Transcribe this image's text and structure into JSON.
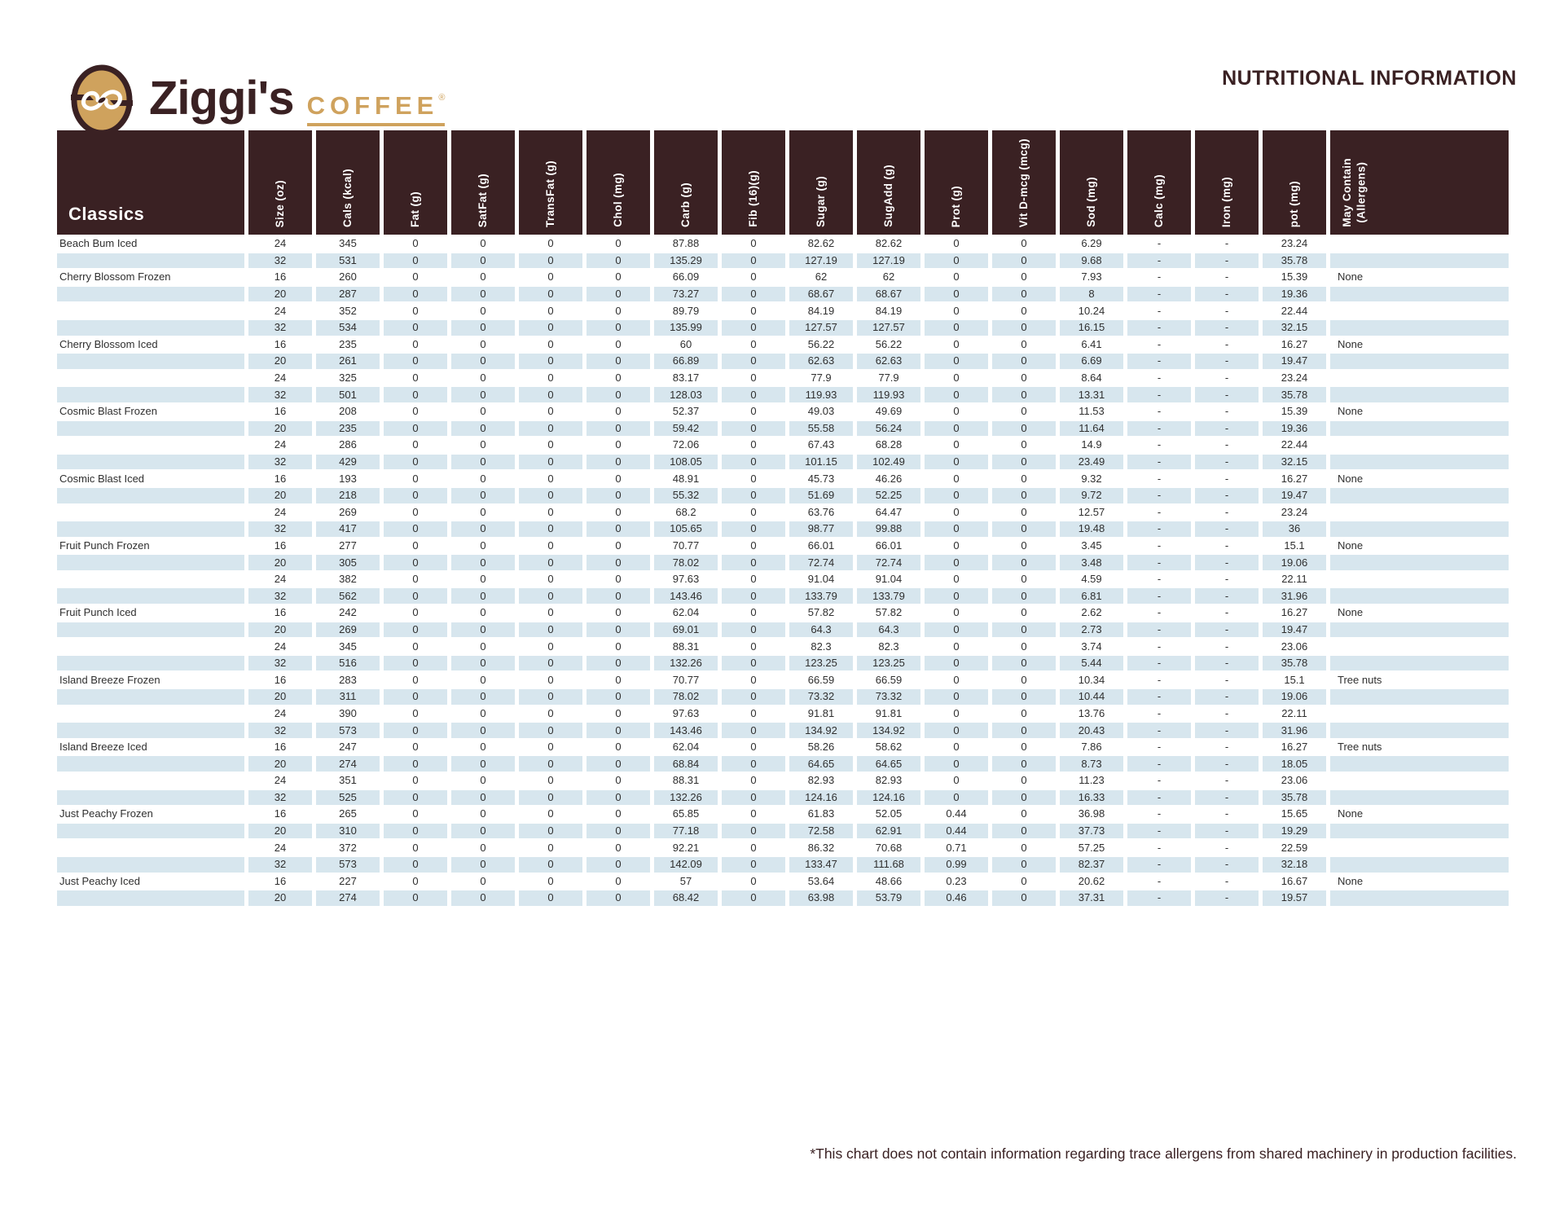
{
  "brand": {
    "name": "Ziggi's",
    "word2": "COFFEE",
    "registered": "®"
  },
  "page_title": "NUTRITIONAL INFORMATION",
  "footnote": "*This chart does not contain information regarding trace allergens from shared machinery in production facilities.",
  "colors": {
    "header_bg": "#3A2123",
    "stripe_blue": "#D7E6EE",
    "brand_tan": "#CFA25D",
    "text": "#2F2F2F"
  },
  "table": {
    "category_label": "Classics",
    "columns": [
      "Size (oz)",
      "Cals (kcal)",
      "Fat (g)",
      "SatFat (g)",
      "TransFat (g)",
      "Chol (mg)",
      "Carb (g)",
      "Fib (16)(g)",
      "Sugar (g)",
      "SugAdd (g)",
      "Prot (g)",
      "Vit D-mcg (mcg)",
      "Sod (mg)",
      "Calc (mg)",
      "Iron (mg)",
      "pot (mg)"
    ],
    "allergen_column": [
      "May Contain",
      "(Allergens)"
    ],
    "rows": [
      {
        "name": "Beach Bum Iced",
        "v": [
          "24",
          "345",
          "0",
          "0",
          "0",
          "0",
          "87.88",
          "0",
          "82.62",
          "82.62",
          "0",
          "0",
          "6.29",
          "-",
          "-",
          "23.24"
        ],
        "a": ""
      },
      {
        "name": "",
        "v": [
          "32",
          "531",
          "0",
          "0",
          "0",
          "0",
          "135.29",
          "0",
          "127.19",
          "127.19",
          "0",
          "0",
          "9.68",
          "-",
          "-",
          "35.78"
        ],
        "a": ""
      },
      {
        "name": "Cherry Blossom Frozen",
        "v": [
          "16",
          "260",
          "0",
          "0",
          "0",
          "0",
          "66.09",
          "0",
          "62",
          "62",
          "0",
          "0",
          "7.93",
          "-",
          "-",
          "15.39"
        ],
        "a": "None"
      },
      {
        "name": "",
        "v": [
          "20",
          "287",
          "0",
          "0",
          "0",
          "0",
          "73.27",
          "0",
          "68.67",
          "68.67",
          "0",
          "0",
          "8",
          "-",
          "-",
          "19.36"
        ],
        "a": ""
      },
      {
        "name": "",
        "v": [
          "24",
          "352",
          "0",
          "0",
          "0",
          "0",
          "89.79",
          "0",
          "84.19",
          "84.19",
          "0",
          "0",
          "10.24",
          "-",
          "-",
          "22.44"
        ],
        "a": ""
      },
      {
        "name": "",
        "v": [
          "32",
          "534",
          "0",
          "0",
          "0",
          "0",
          "135.99",
          "0",
          "127.57",
          "127.57",
          "0",
          "0",
          "16.15",
          "-",
          "-",
          "32.15"
        ],
        "a": ""
      },
      {
        "name": "Cherry Blossom Iced",
        "v": [
          "16",
          "235",
          "0",
          "0",
          "0",
          "0",
          "60",
          "0",
          "56.22",
          "56.22",
          "0",
          "0",
          "6.41",
          "-",
          "-",
          "16.27"
        ],
        "a": "None"
      },
      {
        "name": "",
        "v": [
          "20",
          "261",
          "0",
          "0",
          "0",
          "0",
          "66.89",
          "0",
          "62.63",
          "62.63",
          "0",
          "0",
          "6.69",
          "-",
          "-",
          "19.47"
        ],
        "a": ""
      },
      {
        "name": "",
        "v": [
          "24",
          "325",
          "0",
          "0",
          "0",
          "0",
          "83.17",
          "0",
          "77.9",
          "77.9",
          "0",
          "0",
          "8.64",
          "-",
          "-",
          "23.24"
        ],
        "a": ""
      },
      {
        "name": "",
        "v": [
          "32",
          "501",
          "0",
          "0",
          "0",
          "0",
          "128.03",
          "0",
          "119.93",
          "119.93",
          "0",
          "0",
          "13.31",
          "-",
          "-",
          "35.78"
        ],
        "a": ""
      },
      {
        "name": "Cosmic Blast Frozen",
        "v": [
          "16",
          "208",
          "0",
          "0",
          "0",
          "0",
          "52.37",
          "0",
          "49.03",
          "49.69",
          "0",
          "0",
          "11.53",
          "-",
          "-",
          "15.39"
        ],
        "a": "None"
      },
      {
        "name": "",
        "v": [
          "20",
          "235",
          "0",
          "0",
          "0",
          "0",
          "59.42",
          "0",
          "55.58",
          "56.24",
          "0",
          "0",
          "11.64",
          "-",
          "-",
          "19.36"
        ],
        "a": ""
      },
      {
        "name": "",
        "v": [
          "24",
          "286",
          "0",
          "0",
          "0",
          "0",
          "72.06",
          "0",
          "67.43",
          "68.28",
          "0",
          "0",
          "14.9",
          "-",
          "-",
          "22.44"
        ],
        "a": ""
      },
      {
        "name": "",
        "v": [
          "32",
          "429",
          "0",
          "0",
          "0",
          "0",
          "108.05",
          "0",
          "101.15",
          "102.49",
          "0",
          "0",
          "23.49",
          "-",
          "-",
          "32.15"
        ],
        "a": ""
      },
      {
        "name": "Cosmic Blast Iced",
        "v": [
          "16",
          "193",
          "0",
          "0",
          "0",
          "0",
          "48.91",
          "0",
          "45.73",
          "46.26",
          "0",
          "0",
          "9.32",
          "-",
          "-",
          "16.27"
        ],
        "a": "None"
      },
      {
        "name": "",
        "v": [
          "20",
          "218",
          "0",
          "0",
          "0",
          "0",
          "55.32",
          "0",
          "51.69",
          "52.25",
          "0",
          "0",
          "9.72",
          "-",
          "-",
          "19.47"
        ],
        "a": ""
      },
      {
        "name": "",
        "v": [
          "24",
          "269",
          "0",
          "0",
          "0",
          "0",
          "68.2",
          "0",
          "63.76",
          "64.47",
          "0",
          "0",
          "12.57",
          "-",
          "-",
          "23.24"
        ],
        "a": ""
      },
      {
        "name": "",
        "v": [
          "32",
          "417",
          "0",
          "0",
          "0",
          "0",
          "105.65",
          "0",
          "98.77",
          "99.88",
          "0",
          "0",
          "19.48",
          "-",
          "-",
          "36"
        ],
        "a": ""
      },
      {
        "name": "Fruit Punch Frozen",
        "v": [
          "16",
          "277",
          "0",
          "0",
          "0",
          "0",
          "70.77",
          "0",
          "66.01",
          "66.01",
          "0",
          "0",
          "3.45",
          "-",
          "-",
          "15.1"
        ],
        "a": "None"
      },
      {
        "name": "",
        "v": [
          "20",
          "305",
          "0",
          "0",
          "0",
          "0",
          "78.02",
          "0",
          "72.74",
          "72.74",
          "0",
          "0",
          "3.48",
          "-",
          "-",
          "19.06"
        ],
        "a": ""
      },
      {
        "name": "",
        "v": [
          "24",
          "382",
          "0",
          "0",
          "0",
          "0",
          "97.63",
          "0",
          "91.04",
          "91.04",
          "0",
          "0",
          "4.59",
          "-",
          "-",
          "22.11"
        ],
        "a": ""
      },
      {
        "name": "",
        "v": [
          "32",
          "562",
          "0",
          "0",
          "0",
          "0",
          "143.46",
          "0",
          "133.79",
          "133.79",
          "0",
          "0",
          "6.81",
          "-",
          "-",
          "31.96"
        ],
        "a": ""
      },
      {
        "name": "Fruit Punch Iced",
        "v": [
          "16",
          "242",
          "0",
          "0",
          "0",
          "0",
          "62.04",
          "0",
          "57.82",
          "57.82",
          "0",
          "0",
          "2.62",
          "-",
          "-",
          "16.27"
        ],
        "a": "None"
      },
      {
        "name": "",
        "v": [
          "20",
          "269",
          "0",
          "0",
          "0",
          "0",
          "69.01",
          "0",
          "64.3",
          "64.3",
          "0",
          "0",
          "2.73",
          "-",
          "-",
          "19.47"
        ],
        "a": ""
      },
      {
        "name": "",
        "v": [
          "24",
          "345",
          "0",
          "0",
          "0",
          "0",
          "88.31",
          "0",
          "82.3",
          "82.3",
          "0",
          "0",
          "3.74",
          "-",
          "-",
          "23.06"
        ],
        "a": ""
      },
      {
        "name": "",
        "v": [
          "32",
          "516",
          "0",
          "0",
          "0",
          "0",
          "132.26",
          "0",
          "123.25",
          "123.25",
          "0",
          "0",
          "5.44",
          "-",
          "-",
          "35.78"
        ],
        "a": ""
      },
      {
        "name": "Island Breeze Frozen",
        "v": [
          "16",
          "283",
          "0",
          "0",
          "0",
          "0",
          "70.77",
          "0",
          "66.59",
          "66.59",
          "0",
          "0",
          "10.34",
          "-",
          "-",
          "15.1"
        ],
        "a": "Tree nuts"
      },
      {
        "name": "",
        "v": [
          "20",
          "311",
          "0",
          "0",
          "0",
          "0",
          "78.02",
          "0",
          "73.32",
          "73.32",
          "0",
          "0",
          "10.44",
          "-",
          "-",
          "19.06"
        ],
        "a": ""
      },
      {
        "name": "",
        "v": [
          "24",
          "390",
          "0",
          "0",
          "0",
          "0",
          "97.63",
          "0",
          "91.81",
          "91.81",
          "0",
          "0",
          "13.76",
          "-",
          "-",
          "22.11"
        ],
        "a": ""
      },
      {
        "name": "",
        "v": [
          "32",
          "573",
          "0",
          "0",
          "0",
          "0",
          "143.46",
          "0",
          "134.92",
          "134.92",
          "0",
          "0",
          "20.43",
          "-",
          "-",
          "31.96"
        ],
        "a": ""
      },
      {
        "name": "Island Breeze Iced",
        "v": [
          "16",
          "247",
          "0",
          "0",
          "0",
          "0",
          "62.04",
          "0",
          "58.26",
          "58.62",
          "0",
          "0",
          "7.86",
          "-",
          "-",
          "16.27"
        ],
        "a": "Tree nuts"
      },
      {
        "name": "",
        "v": [
          "20",
          "274",
          "0",
          "0",
          "0",
          "0",
          "68.84",
          "0",
          "64.65",
          "64.65",
          "0",
          "0",
          "8.73",
          "-",
          "-",
          "18.05"
        ],
        "a": ""
      },
      {
        "name": "",
        "v": [
          "24",
          "351",
          "0",
          "0",
          "0",
          "0",
          "88.31",
          "0",
          "82.93",
          "82.93",
          "0",
          "0",
          "11.23",
          "-",
          "-",
          "23.06"
        ],
        "a": ""
      },
      {
        "name": "",
        "v": [
          "32",
          "525",
          "0",
          "0",
          "0",
          "0",
          "132.26",
          "0",
          "124.16",
          "124.16",
          "0",
          "0",
          "16.33",
          "-",
          "-",
          "35.78"
        ],
        "a": ""
      },
      {
        "name": "Just Peachy Frozen",
        "v": [
          "16",
          "265",
          "0",
          "0",
          "0",
          "0",
          "65.85",
          "0",
          "61.83",
          "52.05",
          "0.44",
          "0",
          "36.98",
          "-",
          "-",
          "15.65"
        ],
        "a": "None"
      },
      {
        "name": "",
        "v": [
          "20",
          "310",
          "0",
          "0",
          "0",
          "0",
          "77.18",
          "0",
          "72.58",
          "62.91",
          "0.44",
          "0",
          "37.73",
          "-",
          "-",
          "19.29"
        ],
        "a": ""
      },
      {
        "name": "",
        "v": [
          "24",
          "372",
          "0",
          "0",
          "0",
          "0",
          "92.21",
          "0",
          "86.32",
          "70.68",
          "0.71",
          "0",
          "57.25",
          "-",
          "-",
          "22.59"
        ],
        "a": ""
      },
      {
        "name": "",
        "v": [
          "32",
          "573",
          "0",
          "0",
          "0",
          "0",
          "142.09",
          "0",
          "133.47",
          "111.68",
          "0.99",
          "0",
          "82.37",
          "-",
          "-",
          "32.18"
        ],
        "a": ""
      },
      {
        "name": "Just Peachy Iced",
        "v": [
          "16",
          "227",
          "0",
          "0",
          "0",
          "0",
          "57",
          "0",
          "53.64",
          "48.66",
          "0.23",
          "0",
          "20.62",
          "-",
          "-",
          "16.67"
        ],
        "a": "None"
      },
      {
        "name": "",
        "v": [
          "20",
          "274",
          "0",
          "0",
          "0",
          "0",
          "68.42",
          "0",
          "63.98",
          "53.79",
          "0.46",
          "0",
          "37.31",
          "-",
          "-",
          "19.57"
        ],
        "a": ""
      }
    ]
  }
}
